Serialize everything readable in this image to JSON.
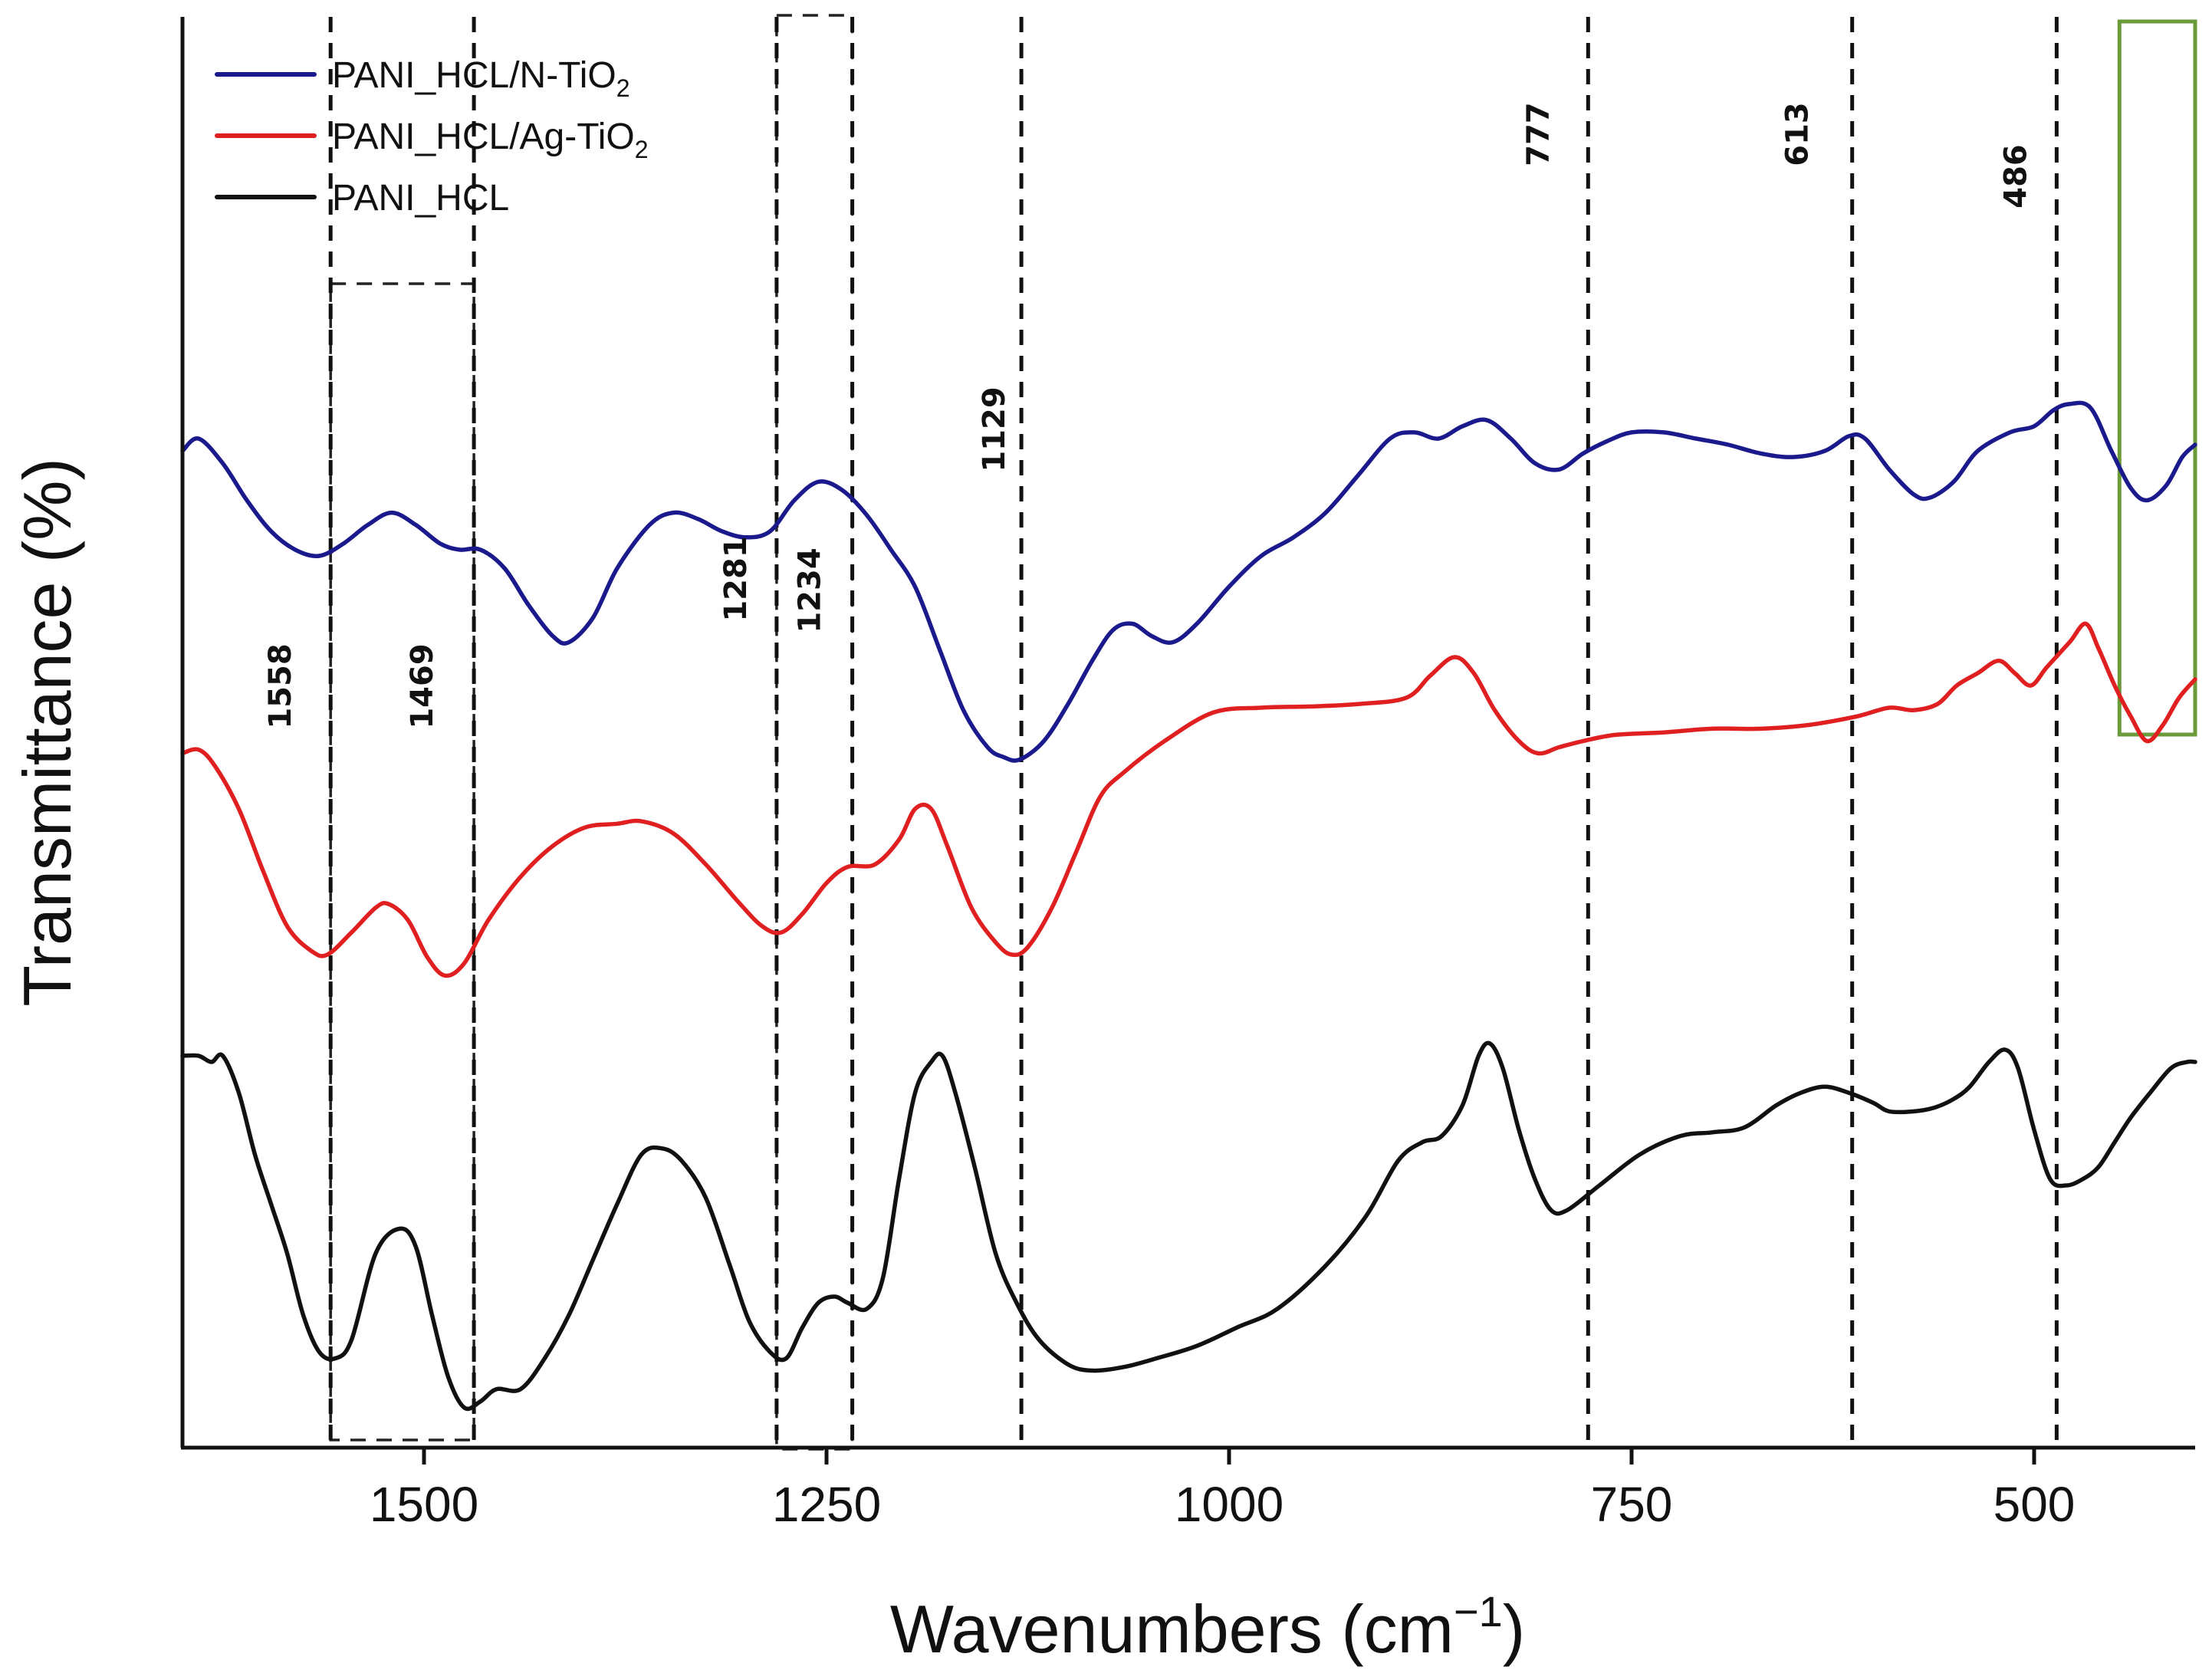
{
  "chart_data": {
    "type": "line",
    "title": "",
    "xlabel": "Wavenumbers (cm",
    "xlabel_superscript": "−1",
    "xlabel_close": ")",
    "ylabel": "Transmittance (%)",
    "xlim": [
      1650,
      400
    ],
    "ylim": [
      0,
      100
    ],
    "x_ticks": [
      1500,
      1250,
      1000,
      750,
      500
    ],
    "x_tick_labels": [
      "1500",
      "1250",
      "1000",
      "750",
      "500"
    ],
    "yticks_shown": false,
    "series": [
      {
        "name": "PANI_HCL/N-TiO2",
        "legend_main": "PANI_HCL/N-TiO",
        "legend_sub": "2",
        "color": "#1a1a8c",
        "points": [
          [
            1650,
            79
          ],
          [
            1640,
            80
          ],
          [
            1625,
            78
          ],
          [
            1610,
            75
          ],
          [
            1595,
            72.5
          ],
          [
            1580,
            71
          ],
          [
            1565,
            70.5
          ],
          [
            1550,
            71.5
          ],
          [
            1535,
            73
          ],
          [
            1520,
            74
          ],
          [
            1505,
            73
          ],
          [
            1490,
            71.5
          ],
          [
            1478,
            71
          ],
          [
            1465,
            71
          ],
          [
            1450,
            69.5
          ],
          [
            1435,
            66.5
          ],
          [
            1420,
            64
          ],
          [
            1410,
            63.5
          ],
          [
            1395,
            65.5
          ],
          [
            1380,
            69.5
          ],
          [
            1360,
            73
          ],
          [
            1345,
            74
          ],
          [
            1330,
            73.5
          ],
          [
            1315,
            72.5
          ],
          [
            1300,
            72
          ],
          [
            1285,
            72.5
          ],
          [
            1270,
            75
          ],
          [
            1255,
            76.5
          ],
          [
            1240,
            75.8
          ],
          [
            1225,
            73.8
          ],
          [
            1210,
            71
          ],
          [
            1195,
            68
          ],
          [
            1180,
            63
          ],
          [
            1165,
            58
          ],
          [
            1150,
            55
          ],
          [
            1140,
            54.2
          ],
          [
            1130,
            54
          ],
          [
            1115,
            55.5
          ],
          [
            1100,
            58.5
          ],
          [
            1085,
            62
          ],
          [
            1072,
            64.5
          ],
          [
            1060,
            65
          ],
          [
            1048,
            64
          ],
          [
            1035,
            63.5
          ],
          [
            1020,
            65
          ],
          [
            1000,
            68
          ],
          [
            980,
            70.5
          ],
          [
            960,
            72
          ],
          [
            940,
            74
          ],
          [
            920,
            77
          ],
          [
            900,
            80
          ],
          [
            885,
            80.5
          ],
          [
            870,
            80
          ],
          [
            855,
            81
          ],
          [
            840,
            81.5
          ],
          [
            825,
            80
          ],
          [
            810,
            78
          ],
          [
            795,
            77.5
          ],
          [
            780,
            78.8
          ],
          [
            765,
            79.8
          ],
          [
            750,
            80.5
          ],
          [
            730,
            80.5
          ],
          [
            710,
            80
          ],
          [
            690,
            79.5
          ],
          [
            670,
            78.8
          ],
          [
            650,
            78.5
          ],
          [
            630,
            79
          ],
          [
            615,
            80.2
          ],
          [
            605,
            80
          ],
          [
            590,
            77.5
          ],
          [
            575,
            75.5
          ],
          [
            565,
            75.2
          ],
          [
            550,
            76.5
          ],
          [
            535,
            79
          ],
          [
            515,
            80.5
          ],
          [
            500,
            81
          ],
          [
            488,
            82.3
          ],
          [
            478,
            82.8
          ],
          [
            465,
            82.5
          ],
          [
            452,
            79
          ],
          [
            440,
            76
          ],
          [
            430,
            75
          ],
          [
            418,
            76.2
          ],
          [
            408,
            78.5
          ],
          [
            400,
            79.5
          ]
        ]
      },
      {
        "name": "PANI_HCL/Ag-TiO2",
        "legend_main": "PANI_HCL/Ag-TiO",
        "legend_sub": "2",
        "color": "#e02020",
        "points": [
          [
            1650,
            54.5
          ],
          [
            1640,
            54.8
          ],
          [
            1630,
            53.5
          ],
          [
            1615,
            50
          ],
          [
            1600,
            45
          ],
          [
            1585,
            40.5
          ],
          [
            1570,
            38.5
          ],
          [
            1560,
            38.2
          ],
          [
            1545,
            40
          ],
          [
            1530,
            42
          ],
          [
            1522,
            42.3
          ],
          [
            1510,
            41
          ],
          [
            1498,
            38
          ],
          [
            1487,
            36.5
          ],
          [
            1475,
            37.5
          ],
          [
            1460,
            41
          ],
          [
            1440,
            44.5
          ],
          [
            1420,
            47
          ],
          [
            1400,
            48.5
          ],
          [
            1380,
            48.8
          ],
          [
            1365,
            49
          ],
          [
            1345,
            48
          ],
          [
            1325,
            45.5
          ],
          [
            1305,
            42.5
          ],
          [
            1290,
            40.5
          ],
          [
            1278,
            40
          ],
          [
            1265,
            41.5
          ],
          [
            1250,
            44
          ],
          [
            1237,
            45.3
          ],
          [
            1220,
            45.5
          ],
          [
            1205,
            47.5
          ],
          [
            1195,
            50
          ],
          [
            1185,
            50
          ],
          [
            1175,
            47
          ],
          [
            1160,
            42
          ],
          [
            1145,
            39.2
          ],
          [
            1135,
            38.2
          ],
          [
            1125,
            38.8
          ],
          [
            1110,
            42
          ],
          [
            1095,
            46.5
          ],
          [
            1080,
            51
          ],
          [
            1065,
            53
          ],
          [
            1040,
            55.5
          ],
          [
            1010,
            57.8
          ],
          [
            980,
            58.2
          ],
          [
            950,
            58.3
          ],
          [
            920,
            58.5
          ],
          [
            890,
            59
          ],
          [
            875,
            60.8
          ],
          [
            860,
            62.3
          ],
          [
            848,
            61
          ],
          [
            835,
            58
          ],
          [
            820,
            55.5
          ],
          [
            808,
            54.5
          ],
          [
            795,
            55
          ],
          [
            780,
            55.5
          ],
          [
            760,
            56
          ],
          [
            730,
            56.2
          ],
          [
            700,
            56.5
          ],
          [
            670,
            56.5
          ],
          [
            640,
            56.8
          ],
          [
            610,
            57.5
          ],
          [
            590,
            58.2
          ],
          [
            575,
            58
          ],
          [
            560,
            58.5
          ],
          [
            548,
            60
          ],
          [
            535,
            61
          ],
          [
            522,
            62
          ],
          [
            512,
            61
          ],
          [
            502,
            60
          ],
          [
            492,
            61.5
          ],
          [
            478,
            63.5
          ],
          [
            468,
            65
          ],
          [
            460,
            63
          ],
          [
            450,
            60
          ],
          [
            440,
            57.5
          ],
          [
            430,
            55.5
          ],
          [
            420,
            56.8
          ],
          [
            410,
            59
          ],
          [
            400,
            60.5
          ]
        ]
      },
      {
        "name": "PANI_HCL",
        "legend_main": "PANI_HCL",
        "legend_sub": "",
        "color": "#111111",
        "points": [
          [
            1650,
            30
          ],
          [
            1640,
            30
          ],
          [
            1632,
            29.5
          ],
          [
            1625,
            30
          ],
          [
            1615,
            27
          ],
          [
            1605,
            22
          ],
          [
            1595,
            18
          ],
          [
            1585,
            14
          ],
          [
            1575,
            9
          ],
          [
            1565,
            6
          ],
          [
            1555,
            5.5
          ],
          [
            1545,
            7
          ],
          [
            1530,
            14
          ],
          [
            1515,
            16
          ],
          [
            1505,
            14.5
          ],
          [
            1495,
            9
          ],
          [
            1485,
            4
          ],
          [
            1475,
            1.5
          ],
          [
            1465,
            2
          ],
          [
            1455,
            3
          ],
          [
            1440,
            3
          ],
          [
            1425,
            5.5
          ],
          [
            1410,
            9
          ],
          [
            1395,
            13.5
          ],
          [
            1380,
            18
          ],
          [
            1365,
            22
          ],
          [
            1352,
            22.5
          ],
          [
            1340,
            21.5
          ],
          [
            1325,
            18.5
          ],
          [
            1310,
            13
          ],
          [
            1298,
            8.5
          ],
          [
            1285,
            6
          ],
          [
            1275,
            5.5
          ],
          [
            1265,
            8
          ],
          [
            1255,
            10
          ],
          [
            1245,
            10.5
          ],
          [
            1237,
            10
          ],
          [
            1225,
            9.5
          ],
          [
            1215,
            12
          ],
          [
            1205,
            20
          ],
          [
            1195,
            27
          ],
          [
            1185,
            29.5
          ],
          [
            1178,
            30
          ],
          [
            1170,
            27
          ],
          [
            1158,
            21
          ],
          [
            1145,
            14
          ],
          [
            1132,
            10
          ],
          [
            1118,
            7
          ],
          [
            1100,
            5
          ],
          [
            1085,
            4.5
          ],
          [
            1065,
            4.8
          ],
          [
            1045,
            5.5
          ],
          [
            1020,
            6.5
          ],
          [
            995,
            8
          ],
          [
            970,
            9.5
          ],
          [
            940,
            13
          ],
          [
            915,
            17
          ],
          [
            895,
            21.5
          ],
          [
            880,
            23
          ],
          [
            868,
            23.5
          ],
          [
            855,
            26
          ],
          [
            845,
            30
          ],
          [
            838,
            31
          ],
          [
            830,
            29
          ],
          [
            820,
            24
          ],
          [
            810,
            20
          ],
          [
            800,
            17.5
          ],
          [
            790,
            17.5
          ],
          [
            770,
            19.5
          ],
          [
            745,
            22
          ],
          [
            720,
            23.5
          ],
          [
            700,
            23.8
          ],
          [
            680,
            24.2
          ],
          [
            660,
            26
          ],
          [
            645,
            27
          ],
          [
            630,
            27.5
          ],
          [
            615,
            27
          ],
          [
            600,
            26.2
          ],
          [
            590,
            25.5
          ],
          [
            575,
            25.5
          ],
          [
            562,
            25.8
          ],
          [
            550,
            26.5
          ],
          [
            540,
            27.5
          ],
          [
            528,
            29.5
          ],
          [
            518,
            30.5
          ],
          [
            510,
            29
          ],
          [
            500,
            24
          ],
          [
            490,
            20
          ],
          [
            480,
            19.5
          ],
          [
            470,
            20
          ],
          [
            460,
            21
          ],
          [
            450,
            23
          ],
          [
            440,
            25
          ],
          [
            428,
            27
          ],
          [
            415,
            29
          ],
          [
            405,
            29.5
          ],
          [
            400,
            29.5
          ]
        ]
      }
    ],
    "peak_markers": [
      {
        "label": "1558",
        "wavenumber": 1558
      },
      {
        "label": "1469",
        "wavenumber": 1469
      },
      {
        "label": "1281",
        "wavenumber": 1281
      },
      {
        "label": "1234",
        "wavenumber": 1234
      },
      {
        "label": "1129",
        "wavenumber": 1129
      },
      {
        "label": "777",
        "wavenumber": 777
      },
      {
        "label": "613",
        "wavenumber": 613
      },
      {
        "label": "486",
        "wavenumber": 486
      }
    ],
    "highlight_boxes": [
      {
        "from": 1558,
        "to": 1469,
        "style": "dashed",
        "color": "#222222"
      },
      {
        "from": 1281,
        "to": 1234,
        "style": "dashed",
        "color": "#222222"
      },
      {
        "from": 447,
        "to": 400,
        "style": "solid",
        "color": "#6a9a3a"
      }
    ],
    "legend_position": "top-left",
    "grid": false
  }
}
